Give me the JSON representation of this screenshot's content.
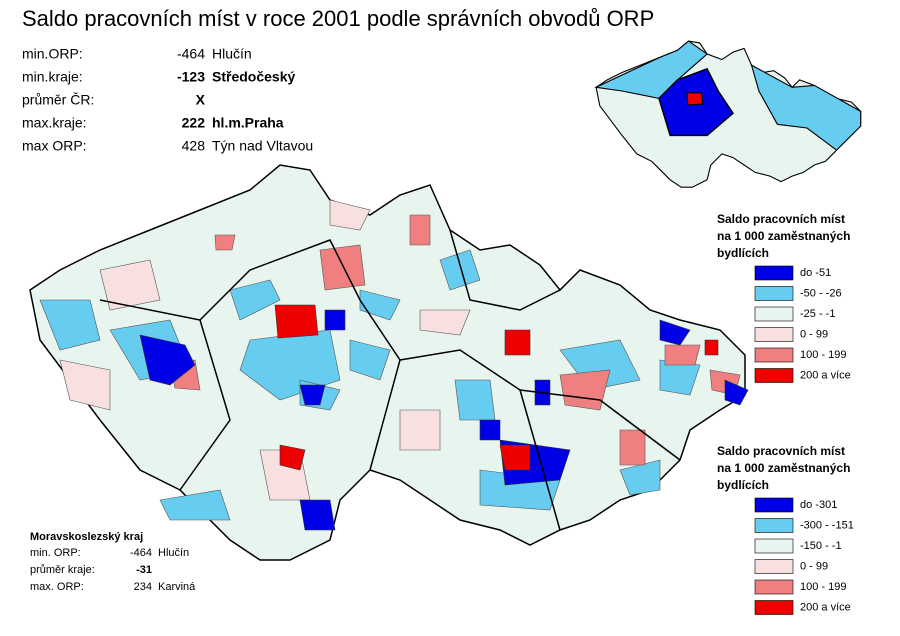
{
  "title": "Saldo pracovních míst v roce 2001 podle správních obvodů ORP",
  "stats": [
    {
      "label": "min.ORP:",
      "value": -464,
      "name": "Hlučín"
    },
    {
      "label": "min.kraje:",
      "value": -123,
      "name": "Středočeský"
    },
    {
      "label": "průměr ČR:",
      "value": "X"
    },
    {
      "label": "max.kraje:",
      "value": 222,
      "name": "hl.m.Praha"
    },
    {
      "label": "max ORP:",
      "value": 428,
      "name": "Týn nad Vltavou"
    }
  ],
  "legend_kraje": {
    "title": [
      "Saldo pracovních míst",
      "na 1 000 zaměstnaných",
      "bydlících"
    ],
    "items": [
      {
        "label": "do -51",
        "color": "#0000e6"
      },
      {
        "label": "-50 - -26",
        "color": "#66ccf0"
      },
      {
        "label": "-25 - -1",
        "color": "#e8f4ee"
      },
      {
        "label": "0 - 99",
        "color": "#f8e0e0"
      },
      {
        "label": "100 - 199",
        "color": "#f08080"
      },
      {
        "label": "200 a více",
        "color": "#ee0000"
      }
    ]
  },
  "legend_orp": {
    "title": [
      "Saldo pracovních míst",
      "na 1 000 zaměstnaných",
      "bydlících"
    ],
    "items": [
      {
        "label": "do -301",
        "color": "#0000e6"
      },
      {
        "label": "-300 - -151",
        "color": "#66ccf0"
      },
      {
        "label": "-150 - -1",
        "color": "#e8f4ee"
      },
      {
        "label": "0 - 99",
        "color": "#f8e0e0"
      },
      {
        "label": "100 - 199",
        "color": "#f08080"
      },
      {
        "label": "200 a více",
        "color": "#ee0000"
      }
    ]
  },
  "inset": {
    "title": "Moravskoslezský kraj",
    "stats": [
      {
        "label": "min. ORP:",
        "value": -464,
        "name": "Hlučín"
      },
      {
        "label": "průměr kraje:",
        "value": -31
      },
      {
        "label": "max. ORP:",
        "value": 234,
        "name": "Karviná"
      }
    ]
  }
}
